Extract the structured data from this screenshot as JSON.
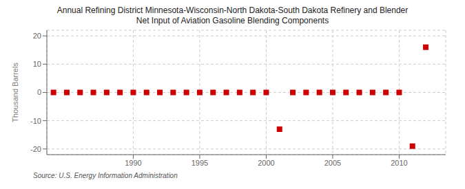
{
  "chart_data": {
    "type": "scatter",
    "title": "Annual Refining District Minnesota-Wisconsin-North Dakota-South Dakota Refinery and Blender\nNet Input of Aviation Gasoline Blending Components",
    "ylabel": "Thousand Barrels",
    "annotations": [
      "Source: U.S. Energy Information Administration"
    ],
    "x": [
      1984,
      1985,
      1986,
      1987,
      1988,
      1989,
      1990,
      1991,
      1992,
      1993,
      1994,
      1995,
      1996,
      1997,
      1998,
      1999,
      2000,
      2001,
      2002,
      2003,
      2004,
      2005,
      2006,
      2007,
      2008,
      2009,
      2010,
      2011,
      2012
    ],
    "values": [
      0,
      0,
      0,
      0,
      0,
      0,
      0,
      0,
      0,
      0,
      0,
      0,
      0,
      0,
      0,
      0,
      0,
      -13,
      0,
      0,
      0,
      0,
      0,
      0,
      0,
      0,
      0,
      -19,
      16
    ],
    "color": "#cc0000",
    "marker": "square",
    "xlim": [
      1983.5,
      2013.5
    ],
    "ylim": [
      -22,
      22
    ],
    "xticks": [
      1990,
      1995,
      2000,
      2005,
      2010
    ],
    "yticks": [
      -20,
      -10,
      0,
      10,
      20
    ],
    "grid": true
  }
}
